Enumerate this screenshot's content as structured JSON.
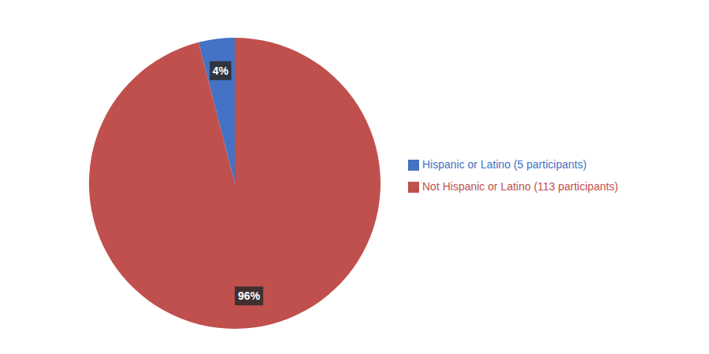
{
  "chart_data": {
    "type": "pie",
    "categories": [
      "Hispanic or Latino (5 participants)",
      "Not Hispanic or Latino (113 participants)"
    ],
    "values": [
      4.0,
      96.0
    ],
    "value_labels": [
      "4%",
      "96%"
    ],
    "colors": [
      "#4472C4",
      "#C0504D"
    ],
    "data_labels": true,
    "legend": "right"
  }
}
